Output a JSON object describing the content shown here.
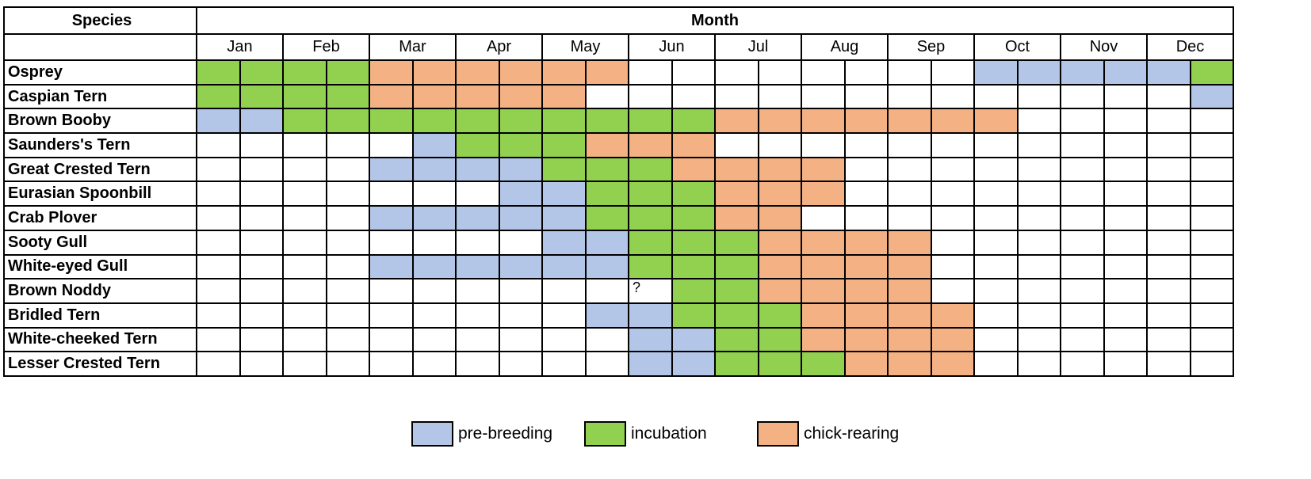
{
  "chart_data": {
    "type": "table",
    "header": {
      "species": "Species",
      "month": "Month"
    },
    "months": [
      "Jan",
      "Feb",
      "Mar",
      "Apr",
      "May",
      "Jun",
      "Jul",
      "Aug",
      "Sep",
      "Oct",
      "Nov",
      "Dec"
    ],
    "periods_per_month": 2,
    "legend": [
      {
        "key": "b",
        "label": "pre-breeding",
        "color": "#b4c6e7"
      },
      {
        "key": "g",
        "label": "incubation",
        "color": "#92d050"
      },
      {
        "key": "o",
        "label": "chick-rearing",
        "color": "#f4b183"
      }
    ],
    "rows": [
      {
        "species": "Osprey",
        "phases": "ggggoooooo--------bbbbbg"
      },
      {
        "species": "Caspian Tern",
        "phases": "ggggooooo--------------b"
      },
      {
        "species": "Brown Booby",
        "phases": "bbggggggggggooooooo-----"
      },
      {
        "species": "Saunders's Tern",
        "phases": "-----bgggooo------------"
      },
      {
        "species": "Great Crested Tern",
        "phases": "----bbbbgggoooo---------"
      },
      {
        "species": "Eurasian Spoonbill",
        "phases": "-------bbgggooo---------"
      },
      {
        "species": "Crab Plover",
        "phases": "----bbbbbgggoo----------"
      },
      {
        "species": "Sooty Gull",
        "phases": "--------bbgggoooo-------"
      },
      {
        "species": "White-eyed Gull",
        "phases": "----bbbbbbgggoooo-------"
      },
      {
        "species": "Brown Noddy",
        "phases": "----------?ggoooo-------"
      },
      {
        "species": "Bridled Tern",
        "phases": "---------bbgggoooo------"
      },
      {
        "species": "White-cheeked Tern",
        "phases": "----------bbggoooo------"
      },
      {
        "species": "Lesser Crested Tern",
        "phases": "----------bbgggooo------"
      }
    ],
    "unknown_marker": "?"
  }
}
